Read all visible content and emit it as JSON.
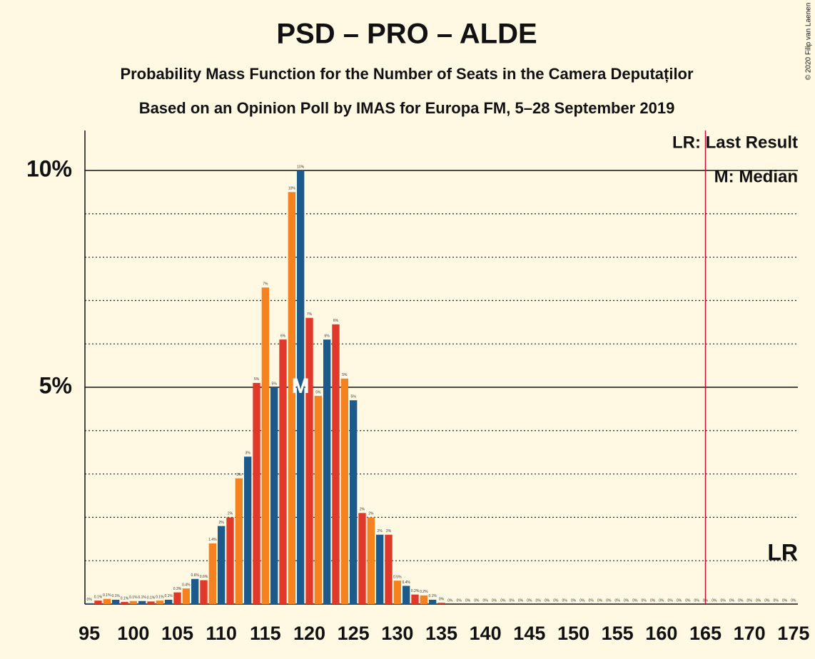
{
  "chart_data": {
    "type": "bar",
    "title": "PSD – PRO – ALDE",
    "subtitle": "Probability Mass Function for the Number of Seats in the Camera Deputaților",
    "subtitle2": "Based on an Opinion Poll by IMAS for Europa FM, 5–28 September 2019",
    "copyright": "© 2020 Filip van Laenen",
    "x": [
      95,
      96,
      97,
      98,
      99,
      100,
      101,
      102,
      103,
      104,
      105,
      106,
      107,
      108,
      109,
      110,
      111,
      112,
      113,
      114,
      115,
      116,
      117,
      118,
      119,
      120,
      121,
      122,
      123,
      124,
      125,
      126,
      127,
      128,
      129,
      130,
      131,
      132,
      133,
      134,
      135,
      136,
      137,
      138,
      139,
      140,
      141,
      142,
      143,
      144,
      145,
      146,
      147,
      148,
      149,
      150,
      151,
      152,
      153,
      154,
      155,
      156,
      157,
      158,
      159,
      160,
      161,
      162,
      163,
      164,
      165,
      166,
      167,
      168,
      169,
      170,
      171,
      172,
      173,
      174,
      175
    ],
    "values": [
      0.02,
      0.08,
      0.12,
      0.1,
      0.05,
      0.07,
      0.07,
      0.06,
      0.08,
      0.1,
      0.27,
      0.36,
      0.58,
      0.55,
      1.4,
      1.8,
      2.0,
      2.9,
      3.4,
      5.1,
      7.3,
      5.0,
      6.1,
      9.5,
      10.0,
      6.6,
      4.8,
      6.1,
      6.45,
      5.2,
      4.7,
      2.1,
      2.0,
      1.6,
      1.6,
      0.54,
      0.42,
      0.22,
      0.2,
      0.1,
      0.03,
      0,
      0,
      0,
      0,
      0,
      0,
      0,
      0,
      0,
      0,
      0,
      0,
      0,
      0,
      0,
      0,
      0,
      0,
      0,
      0,
      0,
      0,
      0,
      0,
      0,
      0,
      0,
      0,
      0,
      0,
      0,
      0,
      0,
      0,
      0,
      0,
      0,
      0,
      0,
      0
    ],
    "value_labels": [
      "0%",
      "0.1%",
      "0.1%",
      "0.1%",
      "0.1%",
      "0.1%",
      "0.1%",
      "0.1%",
      "0.1%",
      "0.1%",
      "0.3%",
      "0.4%",
      "0.6%",
      "0.6%",
      "1.4%",
      "2%",
      "2%",
      "3%",
      "3%",
      "5%",
      "7%",
      "5%",
      "6%",
      "10%",
      "10%",
      "7%",
      "5%",
      "6%",
      "6%",
      "5%",
      "5%",
      "2%",
      "2%",
      "2%",
      "2%",
      "0.5%",
      "0.4%",
      "0.2%",
      "0.2%",
      "0.1%",
      "0%",
      "0%",
      "0%",
      "0%",
      "0%",
      "0%",
      "0%",
      "0%",
      "0%",
      "0%",
      "0%",
      "0%",
      "0%",
      "0%",
      "0%",
      "0%",
      "0%",
      "0%",
      "0%",
      "0%",
      "0%",
      "0%",
      "0%",
      "0%",
      "0%",
      "0%",
      "0%",
      "0%",
      "0%",
      "0%",
      "0%",
      "0%",
      "0%",
      "0%",
      "0%",
      "0%",
      "0%",
      "0%",
      "0%",
      "0%",
      "0%"
    ],
    "colors": [
      "#1c5a8c",
      "#e0392b",
      "#f5821f"
    ],
    "xlim": [
      94.5,
      175.5
    ],
    "xticks": [
      95,
      100,
      105,
      110,
      115,
      120,
      125,
      130,
      135,
      140,
      145,
      150,
      155,
      160,
      165,
      170,
      175
    ],
    "ylim": [
      0,
      10.92
    ],
    "yticks": [
      {
        "value": 5,
        "label": "5%"
      },
      {
        "value": 10,
        "label": "10%"
      }
    ],
    "minor_yticks": [
      1,
      2,
      3,
      4,
      6,
      7,
      8,
      9
    ],
    "median": 119,
    "median_label": "M",
    "last_result": 165,
    "last_result_label": "LR",
    "legend": [
      "LR: Last Result",
      "M: Median"
    ]
  }
}
